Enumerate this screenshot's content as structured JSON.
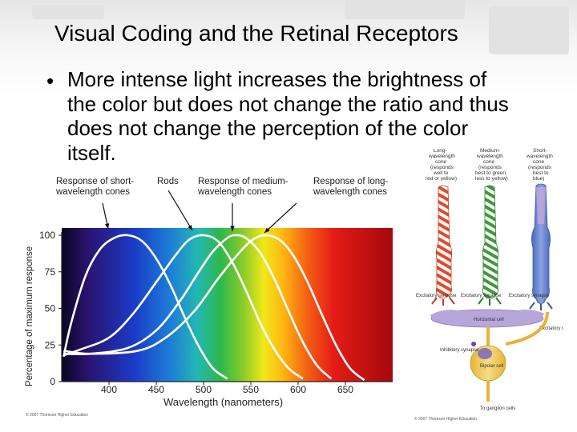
{
  "slide": {
    "title": "Visual Coding and the Retinal Receptors",
    "bullet_lines": [
      "More intense light increases the brightness of",
      "the color but does not change the ratio and thus",
      "does not change the perception of the color",
      "itself."
    ]
  },
  "chart_data": {
    "type": "line",
    "xlabel": "Wavelength (nanometers)",
    "ylabel": "Percentage of maximum response",
    "xlim": [
      350,
      700
    ],
    "ylim": [
      0,
      100
    ],
    "x_ticks": [
      "400",
      "450",
      "500",
      "550",
      "600",
      "650"
    ],
    "y_ticks": [
      "0",
      "25",
      "50",
      "75",
      "100"
    ],
    "annotations": [
      "Response of short-wavelength cones",
      "Rods",
      "Response of medium-wavelength cones",
      "Response of long-wavelength cones"
    ],
    "series": [
      {
        "peak_nm": 420,
        "points": [
          [
            352,
            17
          ],
          [
            360,
            40
          ],
          [
            375,
            72
          ],
          [
            390,
            90
          ],
          [
            405,
            98
          ],
          [
            420,
            100
          ],
          [
            435,
            96
          ],
          [
            450,
            84
          ],
          [
            465,
            66
          ],
          [
            480,
            44
          ],
          [
            495,
            24
          ],
          [
            510,
            9
          ],
          [
            525,
            2
          ]
        ]
      },
      {
        "peak_nm": 500,
        "points": [
          [
            352,
            18
          ],
          [
            370,
            22
          ],
          [
            400,
            30
          ],
          [
            425,
            46
          ],
          [
            450,
            68
          ],
          [
            470,
            86
          ],
          [
            485,
            97
          ],
          [
            500,
            100
          ],
          [
            515,
            96
          ],
          [
            530,
            82
          ],
          [
            545,
            62
          ],
          [
            560,
            40
          ],
          [
            575,
            22
          ],
          [
            590,
            9
          ],
          [
            605,
            2
          ]
        ]
      },
      {
        "peak_nm": 534,
        "points": [
          [
            352,
            19
          ],
          [
            380,
            19
          ],
          [
            420,
            23
          ],
          [
            450,
            35
          ],
          [
            475,
            55
          ],
          [
            495,
            75
          ],
          [
            510,
            89
          ],
          [
            525,
            98
          ],
          [
            534,
            100
          ],
          [
            545,
            98
          ],
          [
            560,
            88
          ],
          [
            575,
            70
          ],
          [
            590,
            48
          ],
          [
            605,
            27
          ],
          [
            620,
            11
          ],
          [
            635,
            2
          ]
        ]
      },
      {
        "peak_nm": 564,
        "points": [
          [
            352,
            21
          ],
          [
            380,
            19
          ],
          [
            430,
            21
          ],
          [
            460,
            30
          ],
          [
            490,
            48
          ],
          [
            515,
            70
          ],
          [
            535,
            86
          ],
          [
            550,
            96
          ],
          [
            564,
            100
          ],
          [
            580,
            97
          ],
          [
            595,
            86
          ],
          [
            610,
            68
          ],
          [
            625,
            46
          ],
          [
            640,
            25
          ],
          [
            655,
            9
          ],
          [
            670,
            1
          ]
        ]
      }
    ],
    "credit": "© 2007 Thomson Higher Education"
  },
  "figure": {
    "cone_titles": [
      [
        "Long-",
        "wavelength",
        "cone",
        "(responds",
        "well to",
        "red or yellow)"
      ],
      [
        "Medium-",
        "wavelength",
        "cone",
        "(responds",
        "best to green,",
        "less to yellow)"
      ],
      [
        "Short-",
        "wavelength",
        "cone",
        "(responds",
        "best to",
        "blue)"
      ]
    ],
    "labels": {
      "excitatory_synapse": "Excitatory synapse",
      "horizontal_cell": "Horizontal cell",
      "inhibitory_synapse": "Inhibitory synapse",
      "bipolar_cell": "Bipolar cell",
      "to_ganglion": "To ganglion cells"
    },
    "credit": "© 2007 Thomson Higher Education"
  },
  "colors": {
    "curve": "#ffffff",
    "long_cone": "#e24a2a",
    "medium_cone": "#3f9a3a",
    "short_cone": "#5a79c9",
    "horizontal_cell": "#b7a6d9",
    "bipolar_cell": "#f2c94c"
  }
}
